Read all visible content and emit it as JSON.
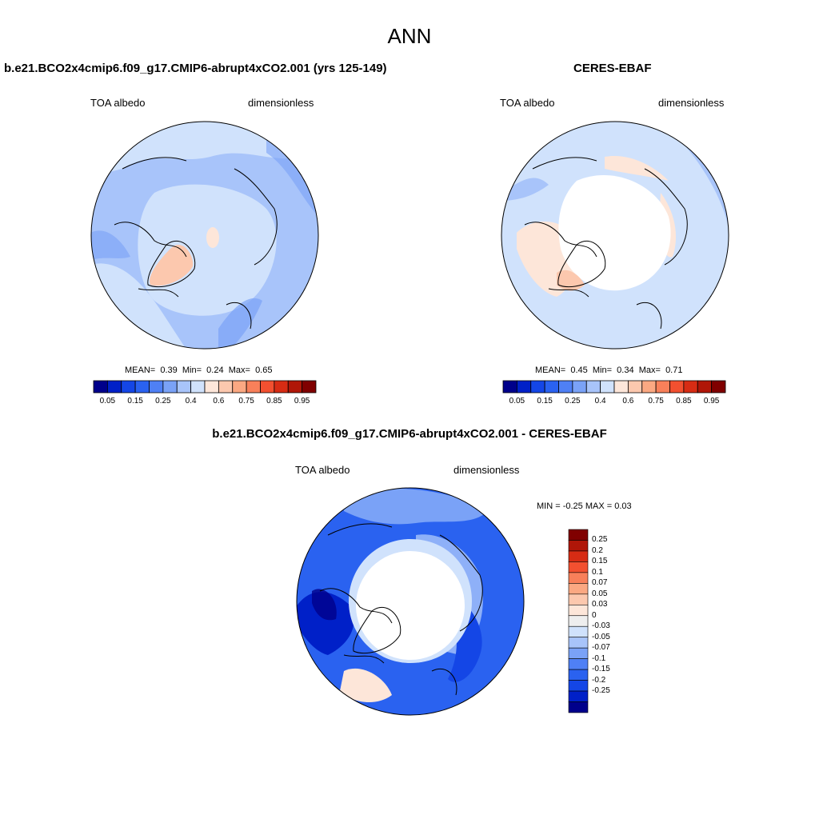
{
  "figure": {
    "title": "ANN"
  },
  "panels": [
    {
      "title": "b.e21.BCO2x4cmip6.f09_g17.CMIP6-abrupt4xCO2.001 (yrs 125-149)",
      "variable": "TOA albedo",
      "units": "dimensionless",
      "stats": {
        "mean_label": "MEAN=",
        "mean": "0.39",
        "min_label": "Min=",
        "min": "0.24",
        "max_label": "Max=",
        "max": "0.65"
      }
    },
    {
      "title": "CERES-EBAF",
      "variable": "TOA albedo",
      "units": "dimensionless",
      "stats": {
        "mean_label": "MEAN=",
        "mean": "0.45",
        "min_label": "Min=",
        "min": "0.34",
        "max_label": "Max=",
        "max": "0.71"
      }
    },
    {
      "title": "b.e21.BCO2x4cmip6.f09_g17.CMIP6-abrupt4xCO2.001 - CERES-EBAF",
      "variable": "TOA albedo",
      "units": "dimensionless",
      "stats_text": "MIN =  -0.25 MAX =   0.03"
    }
  ],
  "colorbar_abs": {
    "colors": [
      "#00008b",
      "#0020c8",
      "#1446e6",
      "#2a62f0",
      "#4f80f5",
      "#7aa2f7",
      "#a8c4fa",
      "#d0e2fc",
      "#fde6d9",
      "#fcc8ae",
      "#fba882",
      "#f8805a",
      "#f25030",
      "#d72c14",
      "#b01608",
      "#800000"
    ],
    "labels": [
      "0.05",
      "0.15",
      "0.25",
      "0.4",
      "0.6",
      "0.75",
      "0.85",
      "0.95"
    ]
  },
  "colorbar_diff": {
    "colors": [
      "#800000",
      "#b01608",
      "#d72c14",
      "#f25030",
      "#f8805a",
      "#fba882",
      "#fcc8ae",
      "#fde6d9",
      "#eeeeee",
      "#d0e2fc",
      "#a8c4fa",
      "#7aa2f7",
      "#4f80f5",
      "#2a62f0",
      "#1446e6",
      "#0020c8",
      "#00008b"
    ],
    "labels": [
      "0.25",
      "0.2",
      "0.15",
      "0.1",
      "0.07",
      "0.05",
      "0.03",
      "0",
      "-0.03",
      "-0.05",
      "-0.07",
      "-0.1",
      "-0.15",
      "-0.2",
      "-0.25"
    ]
  },
  "chart_data": [
    {
      "type": "heatmap",
      "title": "b.e21.BCO2x4cmip6.f09_g17.CMIP6-abrupt4xCO2.001 (yrs 125-149)",
      "projection": "north polar stereographic",
      "variable": "TOA albedo",
      "units": "dimensionless",
      "mean": 0.39,
      "min": 0.24,
      "max": 0.65,
      "levels": [
        0.05,
        0.1,
        0.15,
        0.2,
        0.25,
        0.3,
        0.35,
        0.4,
        0.45,
        0.6,
        0.65,
        0.75,
        0.8,
        0.85,
        0.9,
        0.95
      ]
    },
    {
      "type": "heatmap",
      "title": "CERES-EBAF",
      "projection": "north polar stereographic",
      "variable": "TOA albedo",
      "units": "dimensionless",
      "mean": 0.45,
      "min": 0.34,
      "max": 0.71
    },
    {
      "type": "heatmap",
      "title": "b.e21.BCO2x4cmip6.f09_g17.CMIP6-abrupt4xCO2.001 - CERES-EBAF",
      "projection": "north polar stereographic",
      "variable": "TOA albedo",
      "units": "dimensionless",
      "min": -0.25,
      "max": 0.03,
      "levels": [
        0.25,
        0.2,
        0.15,
        0.1,
        0.07,
        0.05,
        0.03,
        0,
        -0.03,
        -0.05,
        -0.07,
        -0.1,
        -0.15,
        -0.2,
        -0.25
      ]
    }
  ]
}
